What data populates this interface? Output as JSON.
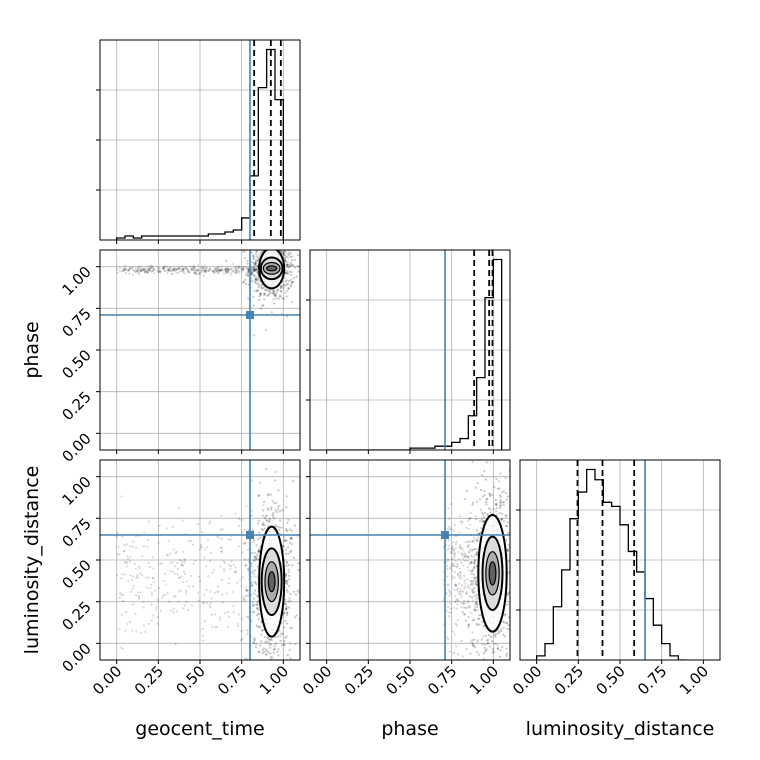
{
  "chart_data": {
    "type": "corner",
    "parameters": [
      "geocent_time",
      "phase",
      "luminosity_distance"
    ],
    "axis_labels": {
      "x": [
        "geocent_time",
        "phase",
        "luminosity_distance"
      ],
      "y": [
        "phase",
        "luminosity_distance"
      ]
    },
    "tick_values": [
      0,
      0.25,
      0.5,
      0.75,
      1.0
    ],
    "tick_labels": [
      "0.00",
      "0.25",
      "0.50",
      "0.75",
      "1.00"
    ],
    "axis_range": [
      -0.1,
      1.1
    ],
    "grid": true,
    "colors": {
      "truth": "#4682b4",
      "hist": "#000000",
      "quantile": "#000000",
      "scatter": "#000000"
    },
    "truths": {
      "geocent_time": 0.8,
      "phase": 0.71,
      "luminosity_distance": 0.65
    },
    "quantiles": {
      "geocent_time": [
        0.825,
        0.925,
        0.985
      ],
      "phase": [
        0.885,
        0.975,
        0.995
      ],
      "luminosity_distance": [
        0.245,
        0.395,
        0.585
      ]
    },
    "histograms": {
      "geocent_time": {
        "edges": [
          0,
          0.05,
          0.1,
          0.15,
          0.2,
          0.25,
          0.3,
          0.35,
          0.4,
          0.45,
          0.5,
          0.55,
          0.6,
          0.65,
          0.7,
          0.75,
          0.8,
          0.85,
          0.9,
          0.95,
          1.0
        ],
        "counts": [
          1,
          2,
          1,
          2,
          2,
          2,
          2,
          2,
          2,
          2,
          2,
          3,
          3,
          4,
          5,
          11,
          32,
          76,
          95,
          70
        ]
      },
      "phase": {
        "edges": [
          0,
          0.05,
          0.1,
          0.15,
          0.2,
          0.25,
          0.3,
          0.35,
          0.4,
          0.45,
          0.5,
          0.55,
          0.6,
          0.65,
          0.7,
          0.75,
          0.8,
          0.85,
          0.9,
          0.95,
          1.0,
          1.05
        ],
        "counts": [
          0,
          0,
          0,
          0,
          0,
          0,
          0,
          0,
          0,
          0,
          1,
          1,
          1,
          2,
          2,
          4,
          6,
          18,
          38,
          80,
          100
        ]
      },
      "luminosity_distance": {
        "edges": [
          0,
          0.05,
          0.1,
          0.15,
          0.2,
          0.25,
          0.3,
          0.35,
          0.4,
          0.45,
          0.5,
          0.55,
          0.6,
          0.65,
          0.7,
          0.75,
          0.8,
          0.85,
          0.9
        ],
        "counts": [
          2,
          8,
          26,
          44,
          69,
          82,
          93,
          88,
          77,
          75,
          66,
          53,
          43,
          30,
          17,
          8,
          2,
          0
        ]
      }
    },
    "contours_2d": [
      {
        "x_param": "geocent_time",
        "y_param": "phase",
        "center": [
          0.93,
          0.99
        ],
        "levels": [
          {
            "rx": 0.03,
            "ry": 0.015
          },
          {
            "rx": 0.05,
            "ry": 0.035
          },
          {
            "rx": 0.065,
            "ry": 0.065
          },
          {
            "rx": 0.075,
            "ry": 0.12
          }
        ]
      },
      {
        "x_param": "geocent_time",
        "y_param": "luminosity_distance",
        "center": [
          0.93,
          0.37
        ],
        "levels": [
          {
            "rx": 0.02,
            "ry": 0.06
          },
          {
            "rx": 0.04,
            "ry": 0.12
          },
          {
            "rx": 0.06,
            "ry": 0.2
          },
          {
            "rx": 0.075,
            "ry": 0.33
          }
        ]
      },
      {
        "x_param": "phase",
        "y_param": "luminosity_distance",
        "center": [
          0.995,
          0.42
        ],
        "levels": [
          {
            "rx": 0.02,
            "ry": 0.07
          },
          {
            "rx": 0.04,
            "ry": 0.13
          },
          {
            "rx": 0.06,
            "ry": 0.22
          },
          {
            "rx": 0.085,
            "ry": 0.35
          }
        ]
      }
    ]
  }
}
